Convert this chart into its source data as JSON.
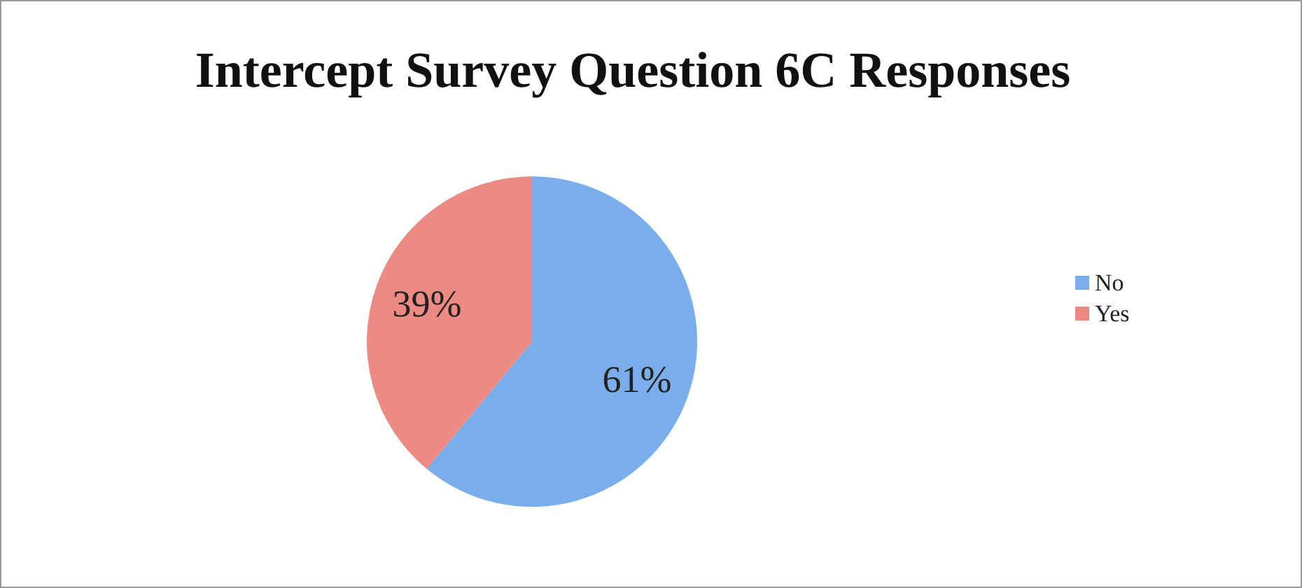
{
  "chart_data": {
    "type": "pie",
    "title": "Intercept Survey Question 6C Responses",
    "categories": [
      "No",
      "Yes"
    ],
    "values": [
      61,
      39
    ],
    "value_labels": [
      "61%",
      "39%"
    ],
    "colors": [
      "#79aeea",
      "#ec8a84"
    ],
    "legend": "right"
  }
}
